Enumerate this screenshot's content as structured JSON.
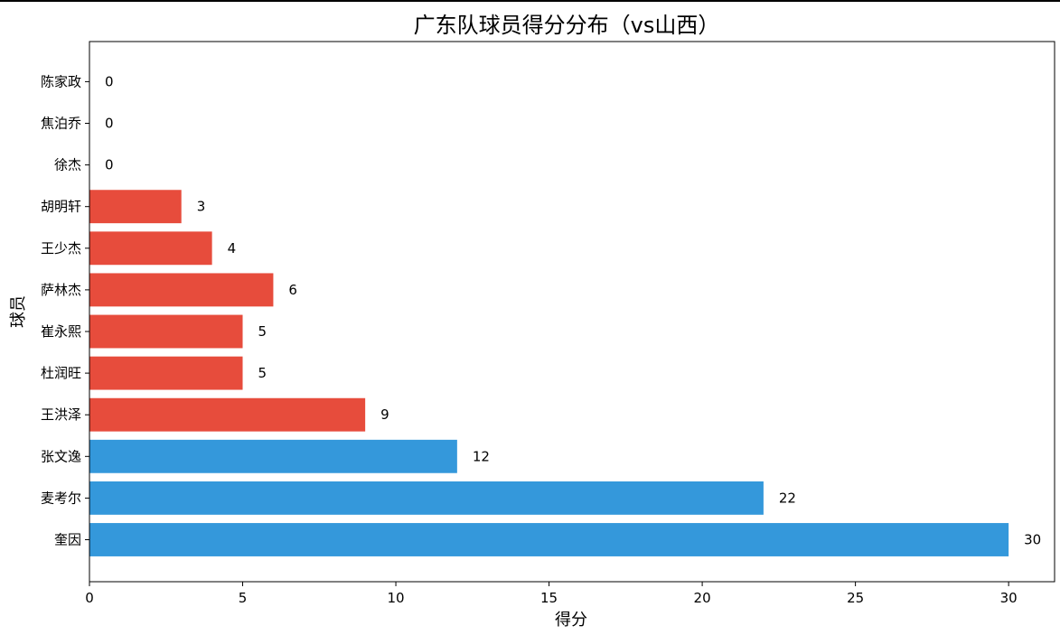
{
  "chart_data": {
    "type": "bar",
    "orientation": "horizontal",
    "title": "广东队球员得分分布（vs山西）",
    "xlabel": "得分",
    "ylabel": "球员",
    "xlim": [
      0,
      31.5
    ],
    "xticks": [
      0,
      5,
      10,
      15,
      20,
      25,
      30
    ],
    "grid": false,
    "categories": [
      "奎因",
      "麦考尔",
      "张文逸",
      "王洪泽",
      "杜润旺",
      "崔永熙",
      "萨林杰",
      "王少杰",
      "胡明轩",
      "徐杰",
      "焦泊乔",
      "陈家政"
    ],
    "values": [
      30,
      22,
      12,
      9,
      5,
      5,
      6,
      4,
      3,
      0,
      0,
      0
    ],
    "bar_colors": [
      "#3498db",
      "#3498db",
      "#3498db",
      "#e74c3c",
      "#e74c3c",
      "#e74c3c",
      "#e74c3c",
      "#e74c3c",
      "#e74c3c",
      "#e74c3c",
      "#e74c3c",
      "#e74c3c"
    ]
  }
}
